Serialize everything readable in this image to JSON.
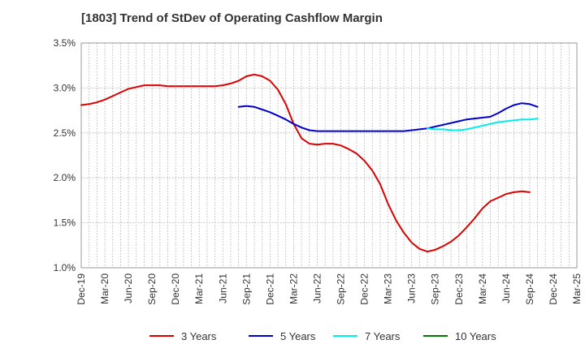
{
  "chart_data": {
    "type": "line",
    "title": "[1803]  Trend of StDev of Operating Cashflow Margin",
    "xlabel": "",
    "ylabel": "",
    "ylim": [
      1.0,
      3.5
    ],
    "yticks": [
      1.0,
      1.5,
      2.0,
      2.5,
      3.0,
      3.5
    ],
    "ytick_labels": [
      "1.0%",
      "1.5%",
      "2.0%",
      "2.5%",
      "3.0%",
      "3.5%"
    ],
    "x_categories": [
      "Dec-19",
      "Mar-20",
      "Jun-20",
      "Sep-20",
      "Dec-20",
      "Mar-21",
      "Jun-21",
      "Sep-21",
      "Dec-21",
      "Mar-22",
      "Jun-22",
      "Sep-22",
      "Dec-22",
      "Mar-23",
      "Jun-23",
      "Sep-23",
      "Dec-23",
      "Mar-24",
      "Jun-24",
      "Sep-24",
      "Dec-24",
      "Mar-25"
    ],
    "grid": "dotted",
    "legend_position": "bottom",
    "series": [
      {
        "name": "3 Years",
        "color": "#dd0000",
        "points": [
          [
            "2019-12",
            2.81
          ],
          [
            "2020-01",
            2.82
          ],
          [
            "2020-02",
            2.84
          ],
          [
            "2020-03",
            2.87
          ],
          [
            "2020-04",
            2.91
          ],
          [
            "2020-05",
            2.95
          ],
          [
            "2020-06",
            2.99
          ],
          [
            "2020-07",
            3.01
          ],
          [
            "2020-08",
            3.03
          ],
          [
            "2020-09",
            3.03
          ],
          [
            "2020-10",
            3.03
          ],
          [
            "2020-11",
            3.02
          ],
          [
            "2020-12",
            3.02
          ],
          [
            "2021-01",
            3.02
          ],
          [
            "2021-02",
            3.02
          ],
          [
            "2021-03",
            3.02
          ],
          [
            "2021-04",
            3.02
          ],
          [
            "2021-05",
            3.02
          ],
          [
            "2021-06",
            3.03
          ],
          [
            "2021-07",
            3.05
          ],
          [
            "2021-08",
            3.08
          ],
          [
            "2021-09",
            3.13
          ],
          [
            "2021-10",
            3.15
          ],
          [
            "2021-11",
            3.13
          ],
          [
            "2021-12",
            3.08
          ],
          [
            "2022-01",
            2.98
          ],
          [
            "2022-02",
            2.82
          ],
          [
            "2022-03",
            2.6
          ],
          [
            "2022-04",
            2.44
          ],
          [
            "2022-05",
            2.38
          ],
          [
            "2022-06",
            2.37
          ],
          [
            "2022-07",
            2.38
          ],
          [
            "2022-08",
            2.38
          ],
          [
            "2022-09",
            2.36
          ],
          [
            "2022-10",
            2.32
          ],
          [
            "2022-11",
            2.27
          ],
          [
            "2022-12",
            2.19
          ],
          [
            "2023-01",
            2.08
          ],
          [
            "2023-02",
            1.93
          ],
          [
            "2023-03",
            1.71
          ],
          [
            "2023-04",
            1.53
          ],
          [
            "2023-05",
            1.39
          ],
          [
            "2023-06",
            1.28
          ],
          [
            "2023-07",
            1.21
          ],
          [
            "2023-08",
            1.18
          ],
          [
            "2023-09",
            1.2
          ],
          [
            "2023-10",
            1.24
          ],
          [
            "2023-11",
            1.29
          ],
          [
            "2023-12",
            1.36
          ],
          [
            "2024-01",
            1.45
          ],
          [
            "2024-02",
            1.55
          ],
          [
            "2024-03",
            1.66
          ],
          [
            "2024-04",
            1.74
          ],
          [
            "2024-05",
            1.78
          ],
          [
            "2024-06",
            1.82
          ],
          [
            "2024-07",
            1.84
          ],
          [
            "2024-08",
            1.85
          ],
          [
            "2024-09",
            1.84
          ]
        ]
      },
      {
        "name": "5 Years",
        "color": "#0000cc",
        "points": [
          [
            "2021-08",
            2.79
          ],
          [
            "2021-09",
            2.8
          ],
          [
            "2021-10",
            2.79
          ],
          [
            "2021-11",
            2.76
          ],
          [
            "2021-12",
            2.73
          ],
          [
            "2022-01",
            2.69
          ],
          [
            "2022-02",
            2.65
          ],
          [
            "2022-03",
            2.6
          ],
          [
            "2022-04",
            2.56
          ],
          [
            "2022-05",
            2.53
          ],
          [
            "2022-06",
            2.52
          ],
          [
            "2022-07",
            2.52
          ],
          [
            "2022-08",
            2.52
          ],
          [
            "2022-09",
            2.52
          ],
          [
            "2022-10",
            2.52
          ],
          [
            "2022-11",
            2.52
          ],
          [
            "2022-12",
            2.52
          ],
          [
            "2023-01",
            2.52
          ],
          [
            "2023-02",
            2.52
          ],
          [
            "2023-03",
            2.52
          ],
          [
            "2023-04",
            2.52
          ],
          [
            "2023-05",
            2.52
          ],
          [
            "2023-06",
            2.53
          ],
          [
            "2023-07",
            2.54
          ],
          [
            "2023-08",
            2.55
          ],
          [
            "2023-09",
            2.57
          ],
          [
            "2023-10",
            2.59
          ],
          [
            "2023-11",
            2.61
          ],
          [
            "2023-12",
            2.63
          ],
          [
            "2024-01",
            2.65
          ],
          [
            "2024-02",
            2.66
          ],
          [
            "2024-03",
            2.67
          ],
          [
            "2024-04",
            2.68
          ],
          [
            "2024-05",
            2.72
          ],
          [
            "2024-06",
            2.77
          ],
          [
            "2024-07",
            2.81
          ],
          [
            "2024-08",
            2.83
          ],
          [
            "2024-09",
            2.82
          ],
          [
            "2024-10",
            2.79
          ]
        ]
      },
      {
        "name": "7 Years",
        "color": "#00eeee",
        "points": [
          [
            "2023-08",
            2.55
          ],
          [
            "2023-09",
            2.54
          ],
          [
            "2023-10",
            2.54
          ],
          [
            "2023-11",
            2.53
          ],
          [
            "2023-12",
            2.53
          ],
          [
            "2024-01",
            2.54
          ],
          [
            "2024-02",
            2.56
          ],
          [
            "2024-03",
            2.58
          ],
          [
            "2024-04",
            2.6
          ],
          [
            "2024-05",
            2.62
          ],
          [
            "2024-06",
            2.63
          ],
          [
            "2024-07",
            2.64
          ],
          [
            "2024-08",
            2.65
          ],
          [
            "2024-09",
            2.65
          ],
          [
            "2024-10",
            2.66
          ]
        ]
      },
      {
        "name": "10 Years",
        "color": "#007700",
        "points": []
      }
    ]
  }
}
